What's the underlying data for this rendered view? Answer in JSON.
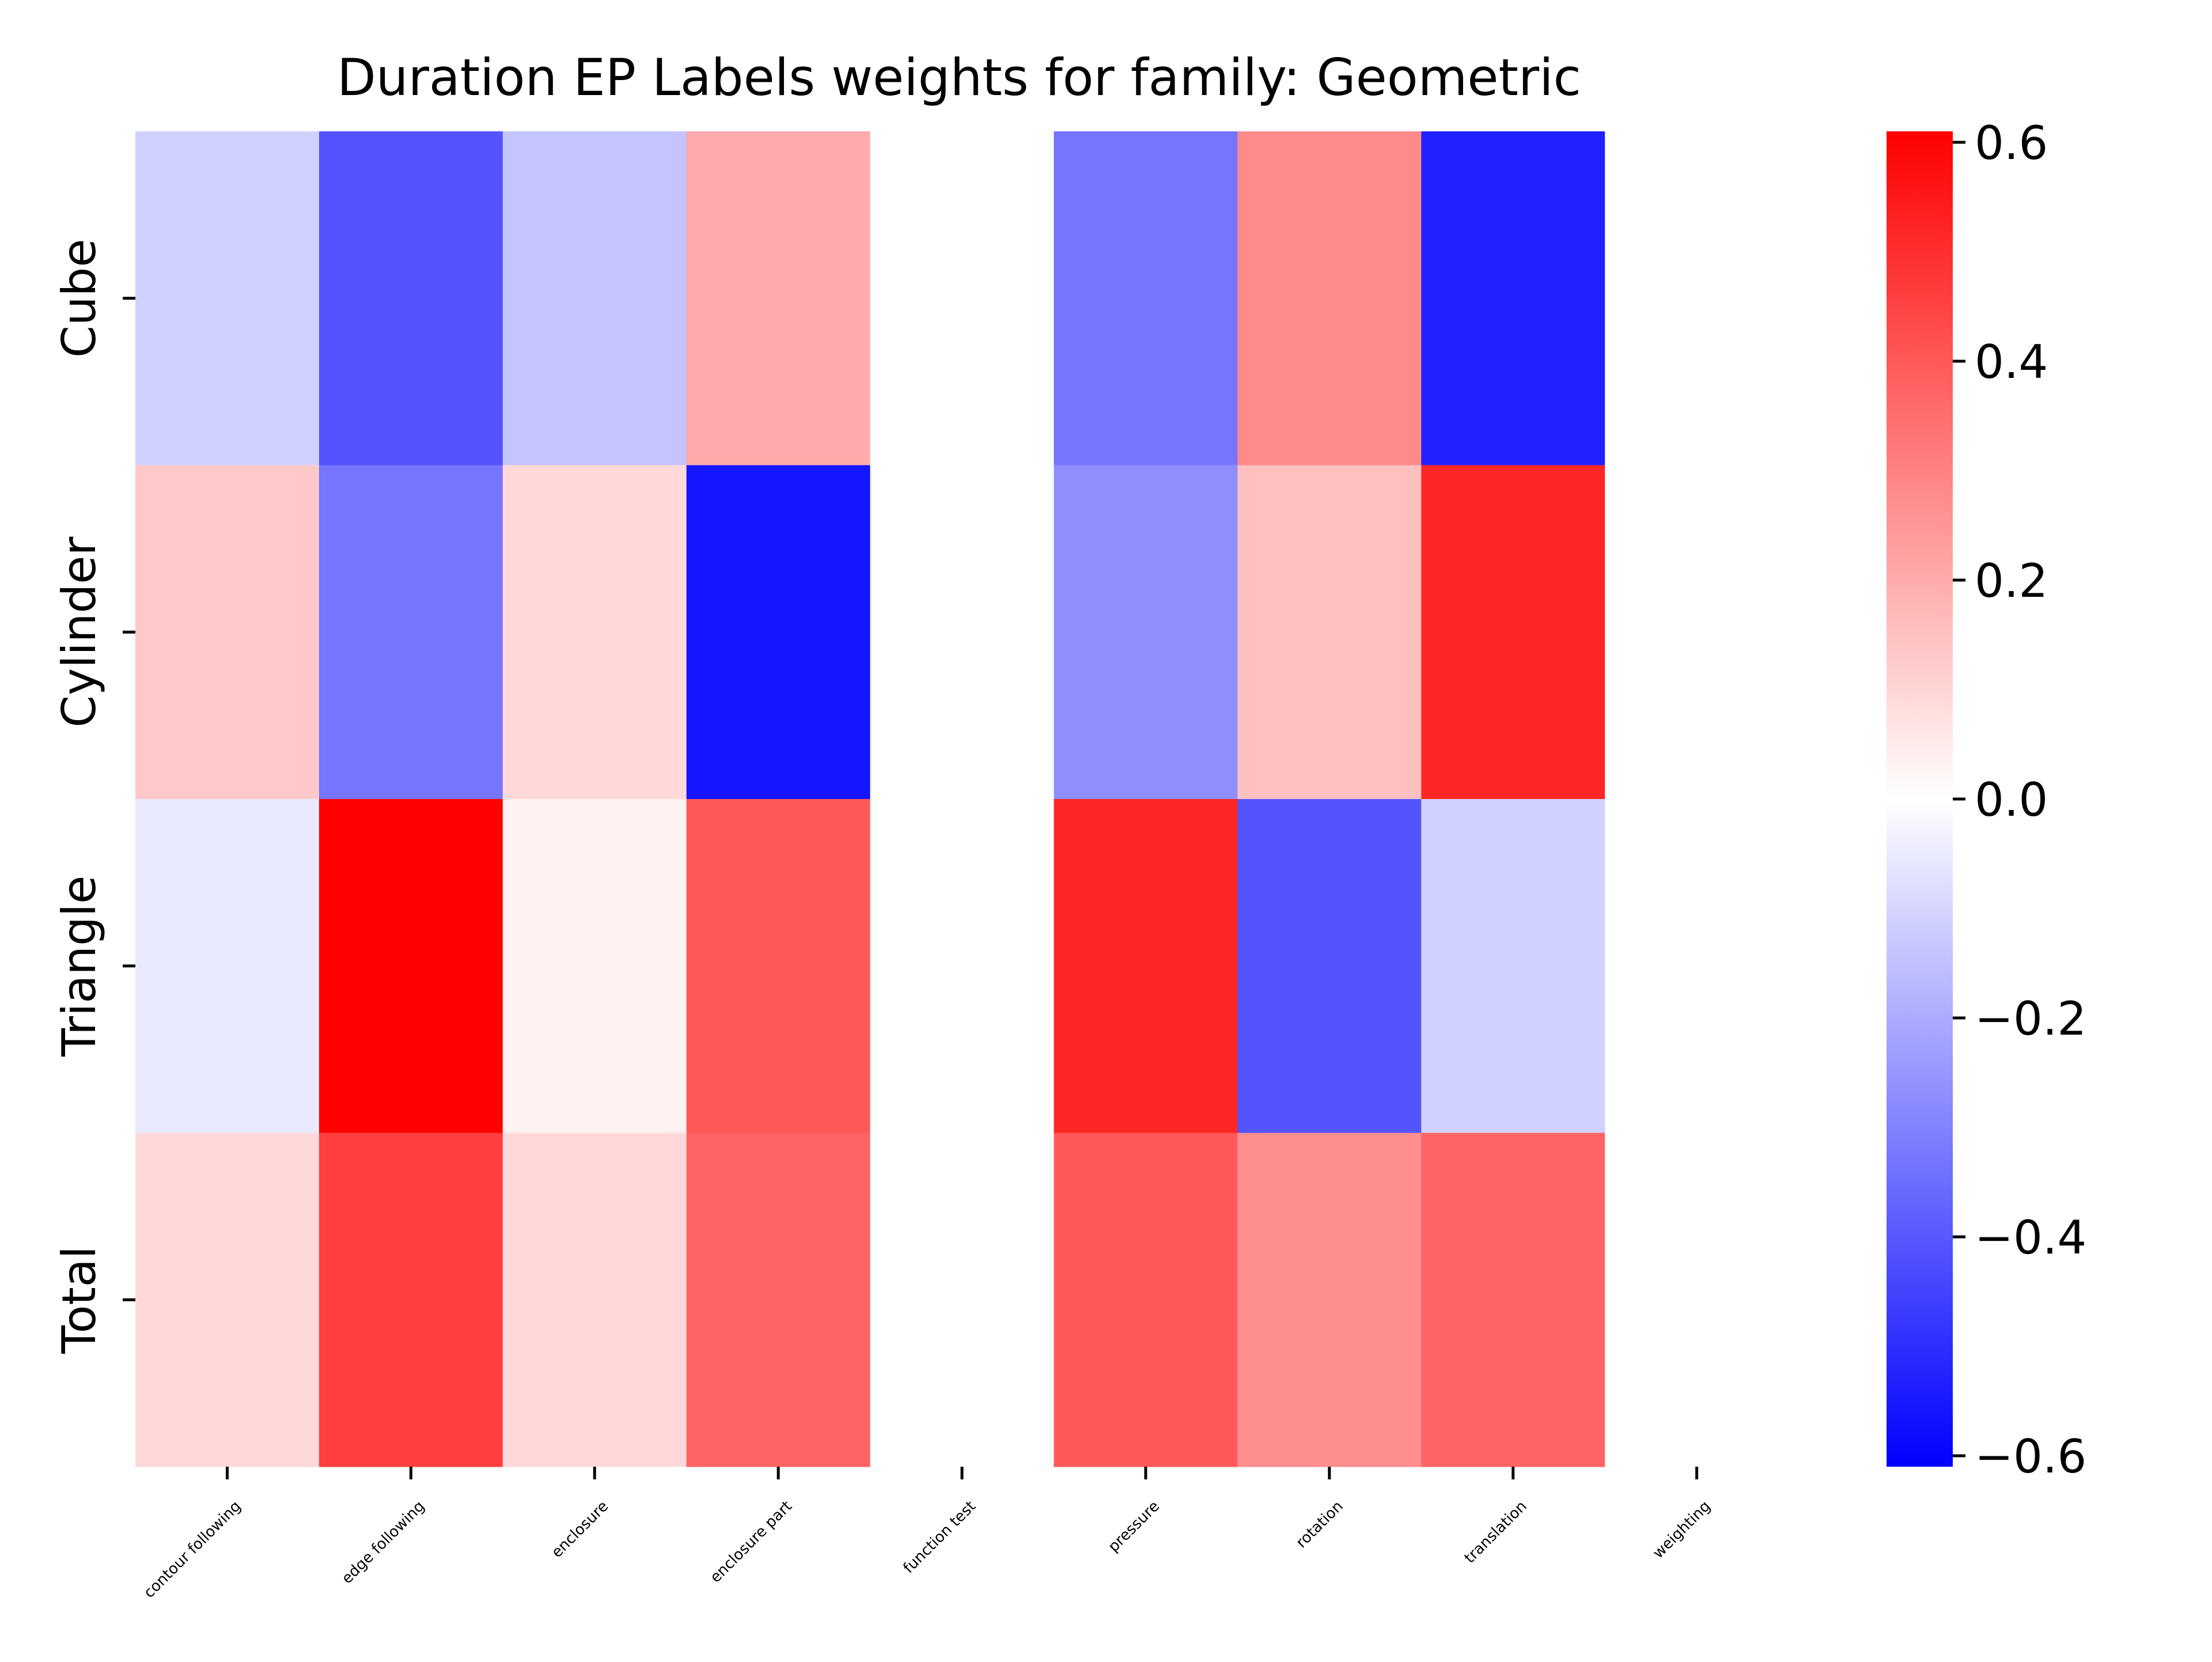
{
  "chart_data": {
    "type": "heatmap",
    "title": "Duration EP Labels weights for family: Geometric",
    "xlabel": "",
    "ylabel": "",
    "x_categories": [
      "contour following",
      "edge following",
      "enclosure",
      "enclosure part",
      "function test",
      "pressure",
      "rotation",
      "translation",
      "weighting"
    ],
    "y_categories": [
      "Cube",
      "Cylinder",
      "Triangle",
      "Total"
    ],
    "values": [
      [
        -0.11,
        -0.41,
        -0.14,
        0.2,
        0.0,
        -0.33,
        0.28,
        -0.53,
        0.0
      ],
      [
        0.13,
        -0.33,
        0.09,
        -0.56,
        0.0,
        -0.27,
        0.15,
        0.52,
        0.0
      ],
      [
        -0.05,
        0.61,
        0.03,
        0.4,
        0.0,
        0.52,
        -0.41,
        -0.11,
        0.0
      ],
      [
        0.09,
        0.46,
        0.09,
        0.37,
        0.0,
        0.4,
        0.27,
        0.37,
        0.0
      ]
    ],
    "colormap": "bwr",
    "vmin": -0.61,
    "vmax": 0.61,
    "colorbar": {
      "ticks": [
        0.6,
        0.4,
        0.2,
        0.0,
        -0.2,
        -0.4,
        -0.6
      ],
      "tick_labels": [
        "0.6",
        "0.4",
        "0.2",
        "0.0",
        "−0.2",
        "−0.4",
        "−0.6"
      ]
    },
    "colors": {
      "negative": "#0000ff",
      "zero": "#ffffff",
      "positive": "#ff0000"
    }
  }
}
